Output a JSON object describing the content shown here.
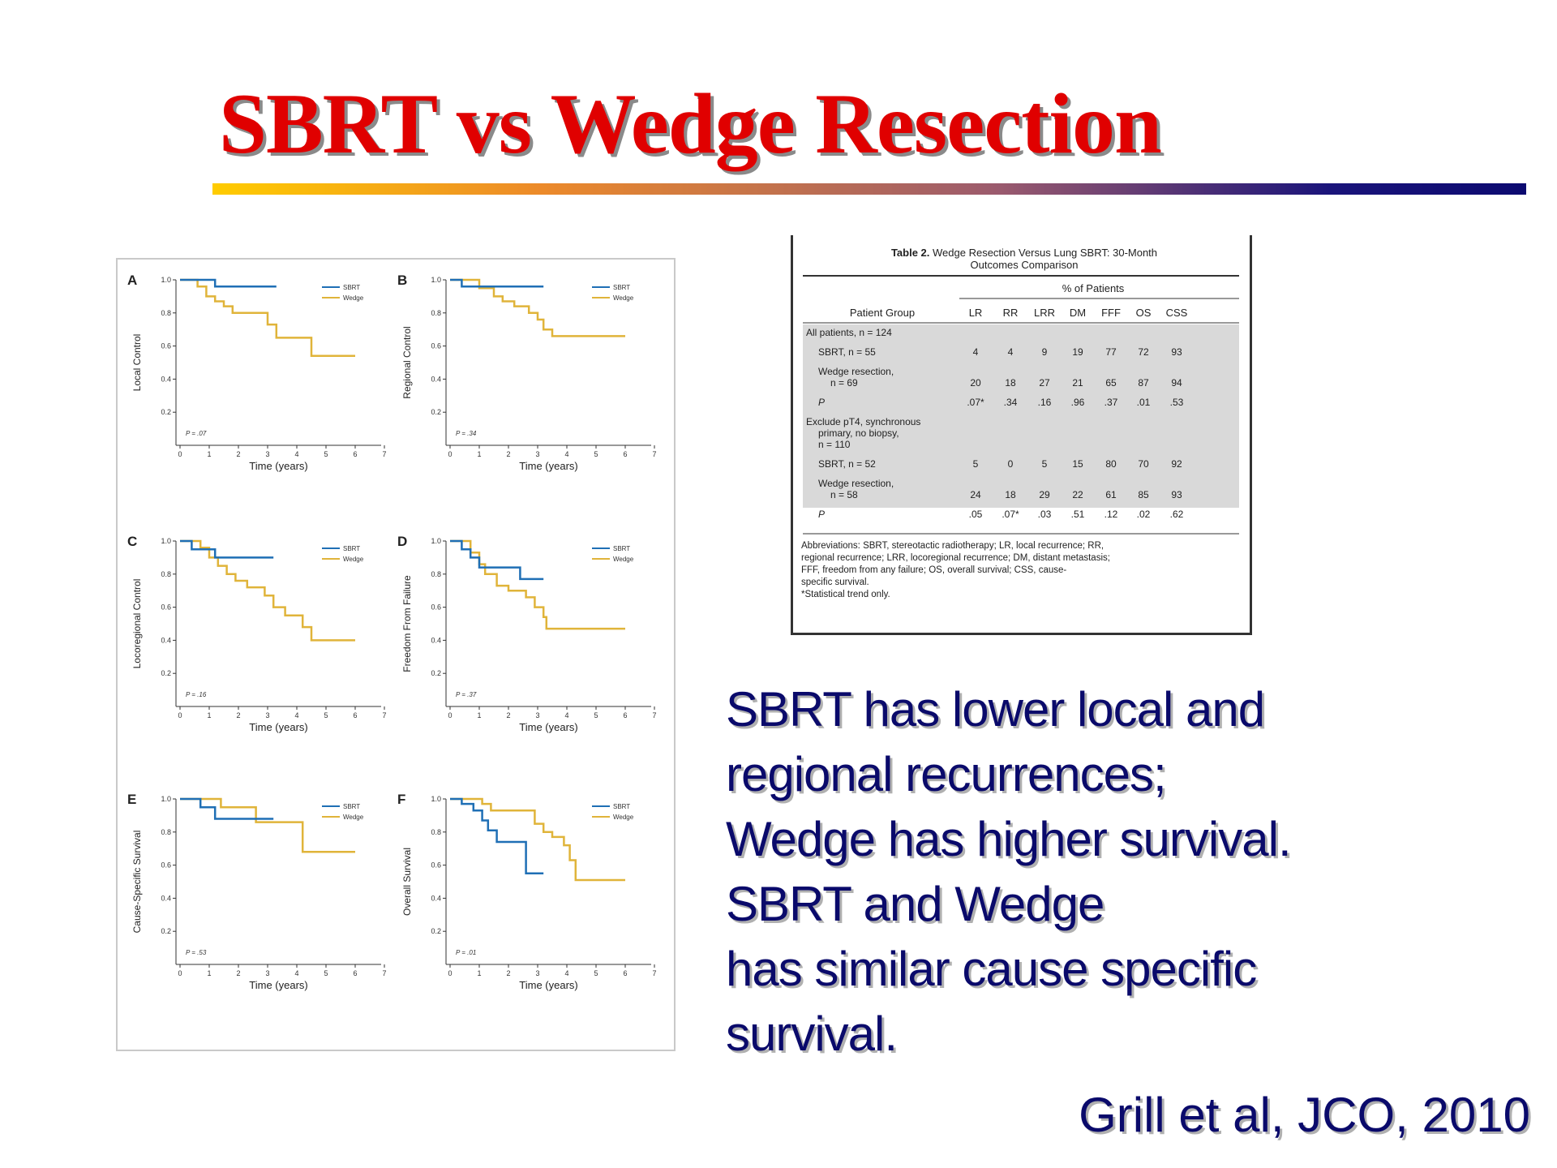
{
  "slide": {
    "title": "SBRT vs Wedge Resection",
    "summary_lines": [
      "SBRT has lower local and",
      "regional recurrences;",
      "Wedge has higher survival.",
      "SBRT and Wedge",
      "has similar cause specific",
      "survival."
    ],
    "citation": "Grill et al, JCO, 2010"
  },
  "colors": {
    "title": "#e00000",
    "text": "#0a0a6b",
    "sbrt": "#1f6fb5",
    "wedge": "#e0b43a",
    "table_shade": "#d9d9d9"
  },
  "figure": {
    "legend": [
      "SBRT",
      "Wedge"
    ],
    "xlabel": "Time (years)",
    "x_ticks": [
      "0",
      "1",
      "2",
      "3",
      "4",
      "5",
      "6",
      "7"
    ],
    "y_ticks": [
      "1.0",
      "0.8",
      "0.6",
      "0.4",
      "0.2"
    ],
    "panels": [
      {
        "letter": "A",
        "ylabel": "Local Control",
        "p": "P = .07",
        "sbrt": [
          [
            0,
            1
          ],
          [
            1.2,
            1
          ],
          [
            1.2,
            0.96
          ],
          [
            3.3,
            0.96
          ]
        ],
        "wedge": [
          [
            0,
            1
          ],
          [
            0.6,
            1
          ],
          [
            0.6,
            0.96
          ],
          [
            0.9,
            0.96
          ],
          [
            0.9,
            0.9
          ],
          [
            1.2,
            0.9
          ],
          [
            1.2,
            0.87
          ],
          [
            1.5,
            0.87
          ],
          [
            1.5,
            0.84
          ],
          [
            1.8,
            0.84
          ],
          [
            1.8,
            0.8
          ],
          [
            3.0,
            0.8
          ],
          [
            3.0,
            0.73
          ],
          [
            3.3,
            0.73
          ],
          [
            3.3,
            0.65
          ],
          [
            4.5,
            0.65
          ],
          [
            4.5,
            0.54
          ],
          [
            6.0,
            0.54
          ]
        ]
      },
      {
        "letter": "B",
        "ylabel": "Regional Control",
        "p": "P = .34",
        "sbrt": [
          [
            0,
            1
          ],
          [
            0.4,
            1
          ],
          [
            0.4,
            0.96
          ],
          [
            3.2,
            0.96
          ]
        ],
        "wedge": [
          [
            0,
            1
          ],
          [
            1.0,
            1
          ],
          [
            1.0,
            0.95
          ],
          [
            1.5,
            0.95
          ],
          [
            1.5,
            0.9
          ],
          [
            1.8,
            0.9
          ],
          [
            1.8,
            0.87
          ],
          [
            2.2,
            0.87
          ],
          [
            2.2,
            0.84
          ],
          [
            2.7,
            0.84
          ],
          [
            2.7,
            0.8
          ],
          [
            3.0,
            0.8
          ],
          [
            3.0,
            0.76
          ],
          [
            3.2,
            0.76
          ],
          [
            3.2,
            0.7
          ],
          [
            3.5,
            0.7
          ],
          [
            3.5,
            0.66
          ],
          [
            6.0,
            0.66
          ]
        ]
      },
      {
        "letter": "C",
        "ylabel": "Locoregional Control",
        "p": "P = .16",
        "sbrt": [
          [
            0,
            1
          ],
          [
            0.4,
            1
          ],
          [
            0.4,
            0.95
          ],
          [
            1.2,
            0.95
          ],
          [
            1.2,
            0.9
          ],
          [
            3.2,
            0.9
          ]
        ],
        "wedge": [
          [
            0,
            1
          ],
          [
            0.7,
            1
          ],
          [
            0.7,
            0.96
          ],
          [
            1.0,
            0.96
          ],
          [
            1.0,
            0.9
          ],
          [
            1.3,
            0.9
          ],
          [
            1.3,
            0.85
          ],
          [
            1.6,
            0.85
          ],
          [
            1.6,
            0.8
          ],
          [
            1.9,
            0.8
          ],
          [
            1.9,
            0.76
          ],
          [
            2.3,
            0.76
          ],
          [
            2.3,
            0.72
          ],
          [
            2.9,
            0.72
          ],
          [
            2.9,
            0.67
          ],
          [
            3.2,
            0.67
          ],
          [
            3.2,
            0.6
          ],
          [
            3.6,
            0.6
          ],
          [
            3.6,
            0.55
          ],
          [
            4.2,
            0.55
          ],
          [
            4.2,
            0.48
          ],
          [
            4.5,
            0.48
          ],
          [
            4.5,
            0.4
          ],
          [
            6.0,
            0.4
          ]
        ]
      },
      {
        "letter": "D",
        "ylabel": "Freedom From Failure",
        "p": "P = .37",
        "sbrt": [
          [
            0,
            1
          ],
          [
            0.4,
            1
          ],
          [
            0.4,
            0.95
          ],
          [
            0.7,
            0.95
          ],
          [
            0.7,
            0.9
          ],
          [
            1.0,
            0.9
          ],
          [
            1.0,
            0.84
          ],
          [
            2.4,
            0.84
          ],
          [
            2.4,
            0.77
          ],
          [
            3.2,
            0.77
          ]
        ],
        "wedge": [
          [
            0,
            1
          ],
          [
            0.7,
            1
          ],
          [
            0.7,
            0.93
          ],
          [
            1.0,
            0.93
          ],
          [
            1.0,
            0.86
          ],
          [
            1.2,
            0.86
          ],
          [
            1.2,
            0.8
          ],
          [
            1.6,
            0.8
          ],
          [
            1.6,
            0.73
          ],
          [
            2.0,
            0.73
          ],
          [
            2.0,
            0.7
          ],
          [
            2.6,
            0.7
          ],
          [
            2.6,
            0.66
          ],
          [
            2.9,
            0.66
          ],
          [
            2.9,
            0.6
          ],
          [
            3.2,
            0.6
          ],
          [
            3.2,
            0.54
          ],
          [
            3.3,
            0.54
          ],
          [
            3.3,
            0.47
          ],
          [
            6.0,
            0.47
          ]
        ]
      },
      {
        "letter": "E",
        "ylabel": "Cause-Specific Survival",
        "p": "P = .53",
        "sbrt": [
          [
            0,
            1
          ],
          [
            0.7,
            1
          ],
          [
            0.7,
            0.95
          ],
          [
            1.2,
            0.95
          ],
          [
            1.2,
            0.88
          ],
          [
            3.2,
            0.88
          ]
        ],
        "wedge": [
          [
            0,
            1
          ],
          [
            1.4,
            1
          ],
          [
            1.4,
            0.95
          ],
          [
            2.6,
            0.95
          ],
          [
            2.6,
            0.86
          ],
          [
            4.2,
            0.86
          ],
          [
            4.2,
            0.68
          ],
          [
            6.0,
            0.68
          ]
        ]
      },
      {
        "letter": "F",
        "ylabel": "Overall Survival",
        "p": "P = .01",
        "sbrt": [
          [
            0,
            1
          ],
          [
            0.4,
            1
          ],
          [
            0.4,
            0.97
          ],
          [
            0.8,
            0.97
          ],
          [
            0.8,
            0.93
          ],
          [
            1.1,
            0.93
          ],
          [
            1.1,
            0.87
          ],
          [
            1.3,
            0.87
          ],
          [
            1.3,
            0.81
          ],
          [
            1.6,
            0.81
          ],
          [
            1.6,
            0.74
          ],
          [
            2.6,
            0.74
          ],
          [
            2.6,
            0.55
          ],
          [
            3.2,
            0.55
          ]
        ],
        "wedge": [
          [
            0,
            1
          ],
          [
            1.1,
            1
          ],
          [
            1.1,
            0.97
          ],
          [
            1.4,
            0.97
          ],
          [
            1.4,
            0.93
          ],
          [
            2.9,
            0.93
          ],
          [
            2.9,
            0.85
          ],
          [
            3.2,
            0.85
          ],
          [
            3.2,
            0.8
          ],
          [
            3.5,
            0.8
          ],
          [
            3.5,
            0.77
          ],
          [
            3.9,
            0.77
          ],
          [
            3.9,
            0.72
          ],
          [
            4.1,
            0.72
          ],
          [
            4.1,
            0.63
          ],
          [
            4.3,
            0.63
          ],
          [
            4.3,
            0.51
          ],
          [
            6.0,
            0.51
          ]
        ]
      }
    ]
  },
  "table": {
    "caption_bold": "Table 2.",
    "caption_line1": "Wedge Resection Versus Lung SBRT: 30-Month",
    "caption_line2": "Outcomes Comparison",
    "group_header": "% of Patients",
    "col_label": "Patient Group",
    "columns": [
      "LR",
      "RR",
      "LRR",
      "DM",
      "FFF",
      "OS",
      "CSS"
    ],
    "rows": [
      {
        "lines": [
          "All patients, n = 124"
        ],
        "values": [],
        "shaded": true
      },
      {
        "lines": [
          "SBRT, n = 55"
        ],
        "values": [
          "4",
          "4",
          "9",
          "19",
          "77",
          "72",
          "93"
        ],
        "shaded": true
      },
      {
        "lines": [
          "Wedge resection,",
          "n = 69"
        ],
        "values": [
          "20",
          "18",
          "27",
          "21",
          "65",
          "87",
          "94"
        ],
        "shaded": true
      },
      {
        "lines": [
          "P"
        ],
        "values": [
          ".07*",
          ".34",
          ".16",
          ".96",
          ".37",
          ".01",
          ".53"
        ],
        "shaded": true
      },
      {
        "lines": [
          "Exclude pT4, synchronous",
          "primary, no biopsy,",
          "n = 110"
        ],
        "values": [],
        "shaded": false
      },
      {
        "lines": [
          "SBRT, n = 52"
        ],
        "values": [
          "5",
          "0",
          "5",
          "15",
          "80",
          "70",
          "92"
        ],
        "shaded": false
      },
      {
        "lines": [
          "Wedge resection,",
          "n = 58"
        ],
        "values": [
          "24",
          "18",
          "29",
          "22",
          "61",
          "85",
          "93"
        ],
        "shaded": false
      },
      {
        "lines": [
          "P"
        ],
        "values": [
          ".05",
          ".07*",
          ".03",
          ".51",
          ".12",
          ".02",
          ".62"
        ],
        "shaded": false
      }
    ],
    "footnote_lines": [
      "Abbreviations: SBRT, stereotactic radiotherapy; LR, local recurrence; RR,",
      "regional recurrence; LRR, locoregional recurrence; DM, distant metastasis;",
      "FFF, freedom from any failure; OS, overall survival; CSS, cause-",
      "specific survival.",
      "*Statistical trend only."
    ]
  }
}
